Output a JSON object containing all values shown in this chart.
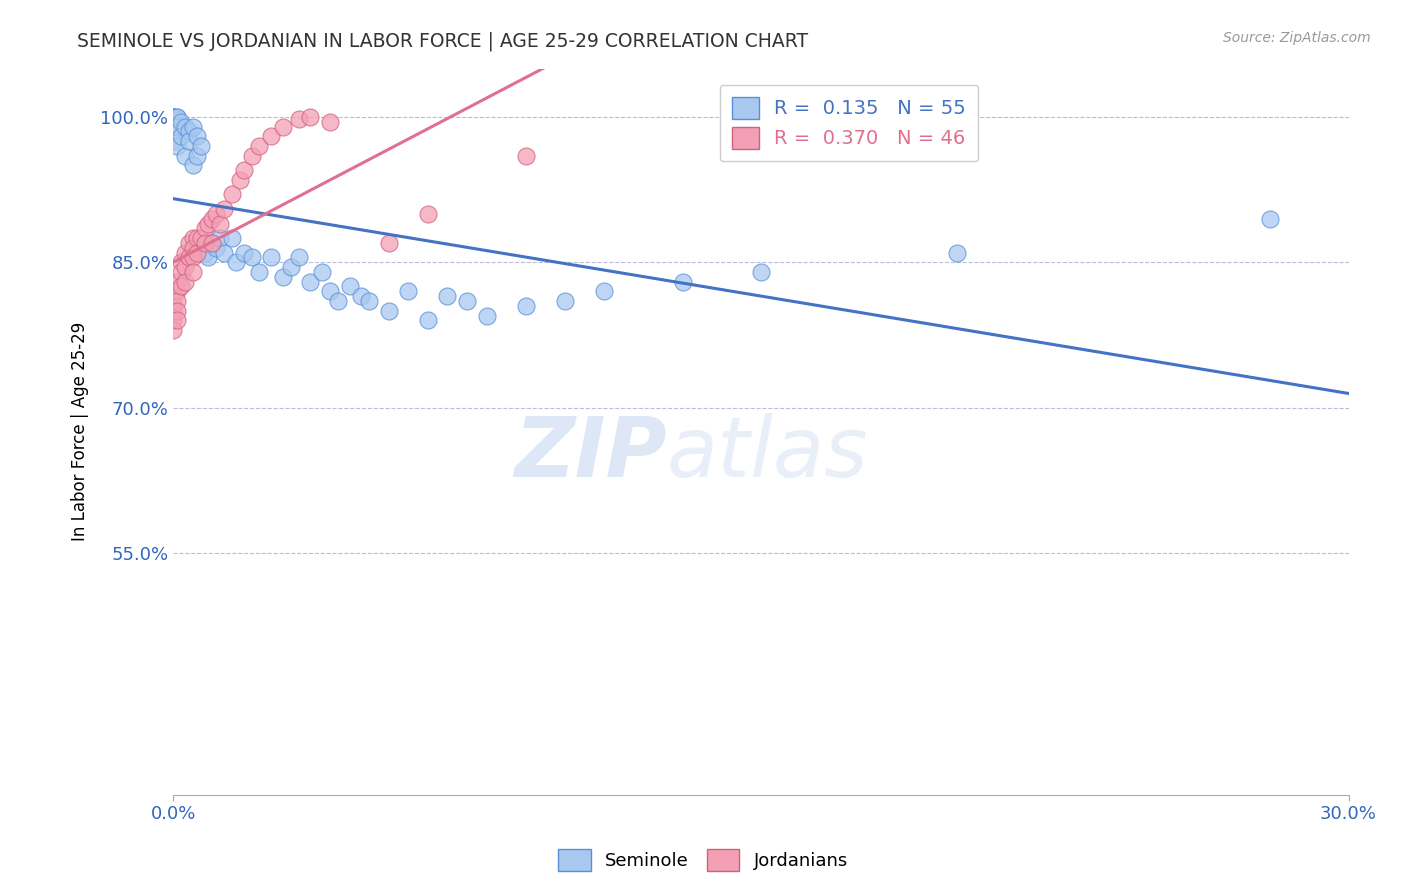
{
  "title": "SEMINOLE VS JORDANIAN IN LABOR FORCE | AGE 25-29 CORRELATION CHART",
  "source": "Source: ZipAtlas.com",
  "ylabel": "In Labor Force | Age 25-29",
  "xlim": [
    0.0,
    0.3
  ],
  "ylim": [
    0.3,
    1.05
  ],
  "yticks": [
    0.55,
    0.7,
    0.85,
    1.0
  ],
  "ytick_labels": [
    "55.0%",
    "70.0%",
    "85.0%",
    "100.0%"
  ],
  "xtick_labels": [
    "0.0%",
    "30.0%"
  ],
  "xticks": [
    0.0,
    0.3
  ],
  "legend_r_seminole": "R =  0.135",
  "legend_n_seminole": "N = 55",
  "legend_r_jordanian": "R =  0.370",
  "legend_n_jordanian": "N = 46",
  "seminole_color": "#A8C8F0",
  "jordanian_color": "#F4A0B4",
  "seminole_line_color": "#4472C4",
  "jordanian_line_color": "#E07090",
  "seminole_edge_color": "#5590D8",
  "jordanian_edge_color": "#D06080",
  "watermark_zip": "ZIP",
  "watermark_atlas": "atlas",
  "seminole_x": [
    0.0,
    0.0,
    0.0,
    0.0,
    0.0,
    0.001,
    0.001,
    0.001,
    0.001,
    0.002,
    0.002,
    0.003,
    0.003,
    0.004,
    0.004,
    0.005,
    0.005,
    0.006,
    0.006,
    0.007,
    0.008,
    0.009,
    0.01,
    0.011,
    0.012,
    0.013,
    0.015,
    0.016,
    0.018,
    0.02,
    0.022,
    0.025,
    0.028,
    0.03,
    0.032,
    0.035,
    0.038,
    0.04,
    0.042,
    0.045,
    0.048,
    0.05,
    0.055,
    0.06,
    0.065,
    0.07,
    0.075,
    0.08,
    0.09,
    0.1,
    0.11,
    0.13,
    0.15,
    0.2,
    0.28
  ],
  "seminole_y": [
    1.0,
    1.0,
    1.0,
    1.0,
    0.975,
    1.0,
    1.0,
    0.99,
    0.97,
    0.995,
    0.98,
    0.99,
    0.96,
    0.985,
    0.975,
    0.99,
    0.95,
    0.98,
    0.96,
    0.97,
    0.86,
    0.855,
    0.87,
    0.865,
    0.875,
    0.86,
    0.875,
    0.85,
    0.86,
    0.855,
    0.84,
    0.855,
    0.835,
    0.845,
    0.855,
    0.83,
    0.84,
    0.82,
    0.81,
    0.825,
    0.815,
    0.81,
    0.8,
    0.82,
    0.79,
    0.815,
    0.81,
    0.795,
    0.805,
    0.81,
    0.82,
    0.83,
    0.84,
    0.86,
    0.895
  ],
  "jordanian_x": [
    0.0,
    0.0,
    0.0,
    0.0,
    0.0,
    0.001,
    0.001,
    0.001,
    0.001,
    0.001,
    0.002,
    0.002,
    0.002,
    0.003,
    0.003,
    0.003,
    0.004,
    0.004,
    0.005,
    0.005,
    0.005,
    0.005,
    0.006,
    0.006,
    0.007,
    0.008,
    0.008,
    0.009,
    0.01,
    0.01,
    0.011,
    0.012,
    0.013,
    0.015,
    0.017,
    0.018,
    0.02,
    0.022,
    0.025,
    0.028,
    0.032,
    0.035,
    0.04,
    0.055,
    0.065,
    0.09
  ],
  "jordanian_y": [
    0.81,
    0.82,
    0.8,
    0.79,
    0.78,
    0.83,
    0.82,
    0.81,
    0.8,
    0.79,
    0.85,
    0.84,
    0.825,
    0.86,
    0.845,
    0.83,
    0.87,
    0.855,
    0.875,
    0.865,
    0.855,
    0.84,
    0.875,
    0.86,
    0.875,
    0.885,
    0.87,
    0.89,
    0.895,
    0.87,
    0.9,
    0.89,
    0.905,
    0.92,
    0.935,
    0.945,
    0.96,
    0.97,
    0.98,
    0.99,
    0.998,
    1.0,
    0.995,
    0.87,
    0.9,
    0.96
  ]
}
